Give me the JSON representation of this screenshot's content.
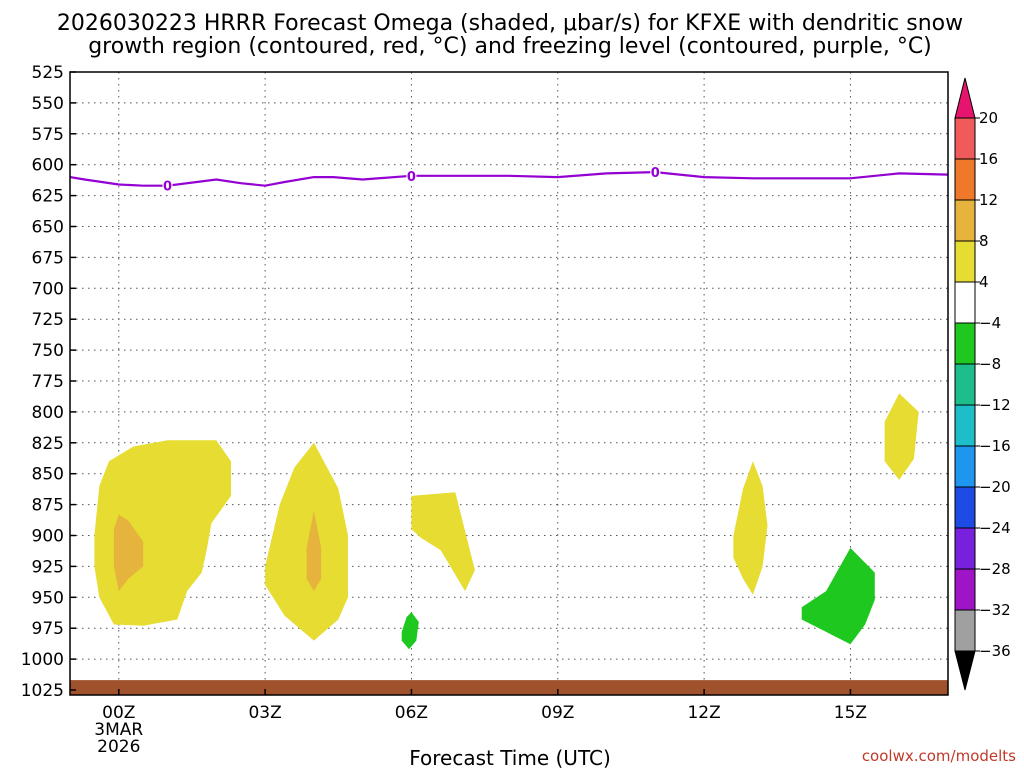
{
  "chart_data": {
    "type": "heatmap",
    "title_lines": [
      "2026030223 HRRR Forecast Omega (shaded, μbar/s) for KFXE with dendritic snow",
      "growth region (contoured, red, °C) and freezing level (contoured, purple, °C)"
    ],
    "xlabel": "Forecast Time (UTC)",
    "credit": "coolwx.com/modelts",
    "x_ticks": [
      {
        "hour": 0,
        "lines": [
          "00Z",
          "3MAR",
          "2026"
        ]
      },
      {
        "hour": 3,
        "lines": [
          "03Z"
        ]
      },
      {
        "hour": 6,
        "lines": [
          "06Z"
        ]
      },
      {
        "hour": 9,
        "lines": [
          "09Z"
        ]
      },
      {
        "hour": 12,
        "lines": [
          "12Z"
        ]
      },
      {
        "hour": 15,
        "lines": [
          "15Z"
        ]
      }
    ],
    "xlim": [
      -1,
      17
    ],
    "ylim": [
      525,
      1025
    ],
    "y_ticks": [
      525,
      550,
      575,
      600,
      625,
      650,
      675,
      700,
      725,
      750,
      775,
      800,
      825,
      850,
      875,
      900,
      925,
      950,
      975,
      1000,
      1025
    ],
    "colorbar": {
      "labels": [
        "20",
        "16",
        "12",
        "8",
        "4",
        "−4",
        "−8",
        "−12",
        "−16",
        "−20",
        "−24",
        "−28",
        "−32",
        "−36"
      ],
      "colors": [
        "#f05a5a",
        "#f0782a",
        "#e6b43c",
        "#e6dc32",
        "#ffffff",
        "#1ec81e",
        "#1ebe8c",
        "#1ebec8",
        "#1e96f0",
        "#1e4be6",
        "#7820dc",
        "#a014c8",
        "#a0a0a0"
      ],
      "top_arrow_color": "#e6146e",
      "bottom_arrow_color": "#000000"
    },
    "freezing_level": {
      "value_label": "0",
      "color": "#9400d3",
      "hours": [
        -1,
        -0.7,
        0,
        0.5,
        1,
        1.6,
        2,
        2.5,
        3,
        3.4,
        4,
        4.4,
        5,
        6,
        7,
        8,
        9,
        10,
        11,
        12,
        13,
        14,
        15,
        16,
        17
      ],
      "pressure": [
        610,
        612,
        616,
        617,
        617,
        614,
        612,
        615,
        617,
        614,
        610,
        610,
        612,
        609,
        609,
        609,
        610,
        607,
        606,
        610,
        611,
        611,
        611,
        607,
        608
      ],
      "labels_at_hours": [
        1,
        6,
        11
      ]
    },
    "omega_regions": [
      {
        "level": "4 to 8",
        "color": "#e6dc32",
        "points": [
          [
            -0.5,
            900
          ],
          [
            -0.4,
            860
          ],
          [
            -0.2,
            840
          ],
          [
            0.3,
            828
          ],
          [
            1,
            823
          ],
          [
            2,
            823
          ],
          [
            2.3,
            840
          ],
          [
            2.3,
            868
          ],
          [
            1.9,
            890
          ],
          [
            1.8,
            912
          ],
          [
            1.7,
            930
          ],
          [
            1.4,
            945
          ],
          [
            1.2,
            968
          ],
          [
            0.5,
            973
          ],
          [
            -0.1,
            972
          ],
          [
            -0.4,
            950
          ],
          [
            -0.5,
            925
          ]
        ]
      },
      {
        "level": "8 to 12",
        "color": "#e6b43c",
        "points": [
          [
            -0.1,
            895
          ],
          [
            0,
            883
          ],
          [
            0.2,
            888
          ],
          [
            0.5,
            905
          ],
          [
            0.5,
            925
          ],
          [
            0.2,
            935
          ],
          [
            0,
            945
          ],
          [
            -0.1,
            925
          ]
        ]
      },
      {
        "level": "4 to 8",
        "color": "#e6dc32",
        "points": [
          [
            3,
            925
          ],
          [
            3.3,
            875
          ],
          [
            3.6,
            845
          ],
          [
            4,
            825
          ],
          [
            4.5,
            862
          ],
          [
            4.7,
            900
          ],
          [
            4.7,
            950
          ],
          [
            4.5,
            968
          ],
          [
            4,
            985
          ],
          [
            3.4,
            965
          ],
          [
            3,
            940
          ]
        ]
      },
      {
        "level": "8 to 12",
        "color": "#e6b43c",
        "points": [
          [
            3.85,
            910
          ],
          [
            4,
            880
          ],
          [
            4.15,
            910
          ],
          [
            4.15,
            935
          ],
          [
            4,
            945
          ],
          [
            3.85,
            935
          ]
        ]
      },
      {
        "level": "4 to 8",
        "color": "#e6dc32",
        "points": [
          [
            6,
            868
          ],
          [
            6.9,
            865
          ],
          [
            7.3,
            928
          ],
          [
            7.1,
            945
          ],
          [
            6.6,
            912
          ],
          [
            6.2,
            902
          ],
          [
            6,
            895
          ]
        ]
      },
      {
        "level": "-8 to -4",
        "color": "#1ec81e",
        "points": [
          [
            5.8,
            978
          ],
          [
            5.9,
            966
          ],
          [
            6,
            962
          ],
          [
            6.15,
            970
          ],
          [
            6.1,
            985
          ],
          [
            5.95,
            992
          ],
          [
            5.8,
            985
          ]
        ]
      },
      {
        "level": "4 to 8",
        "color": "#e6dc32",
        "points": [
          [
            12.6,
            900
          ],
          [
            12.8,
            862
          ],
          [
            13,
            840
          ],
          [
            13.2,
            860
          ],
          [
            13.3,
            892
          ],
          [
            13.2,
            925
          ],
          [
            13,
            948
          ],
          [
            12.8,
            935
          ],
          [
            12.6,
            918
          ]
        ]
      },
      {
        "level": "-8 to -4",
        "color": "#1ec81e",
        "points": [
          [
            14,
            958
          ],
          [
            14.5,
            945
          ],
          [
            15,
            910
          ],
          [
            15.5,
            930
          ],
          [
            15.5,
            952
          ],
          [
            15.3,
            972
          ],
          [
            15,
            988
          ],
          [
            14.5,
            978
          ],
          [
            14,
            968
          ]
        ]
      },
      {
        "level": "4 to 8",
        "color": "#e6dc32",
        "points": [
          [
            15.7,
            808
          ],
          [
            16,
            785
          ],
          [
            16.4,
            800
          ],
          [
            16.3,
            838
          ],
          [
            16,
            855
          ],
          [
            15.7,
            840
          ]
        ]
      }
    ],
    "surface": {
      "color": "#a0522d",
      "pressure_top": 1017
    }
  }
}
